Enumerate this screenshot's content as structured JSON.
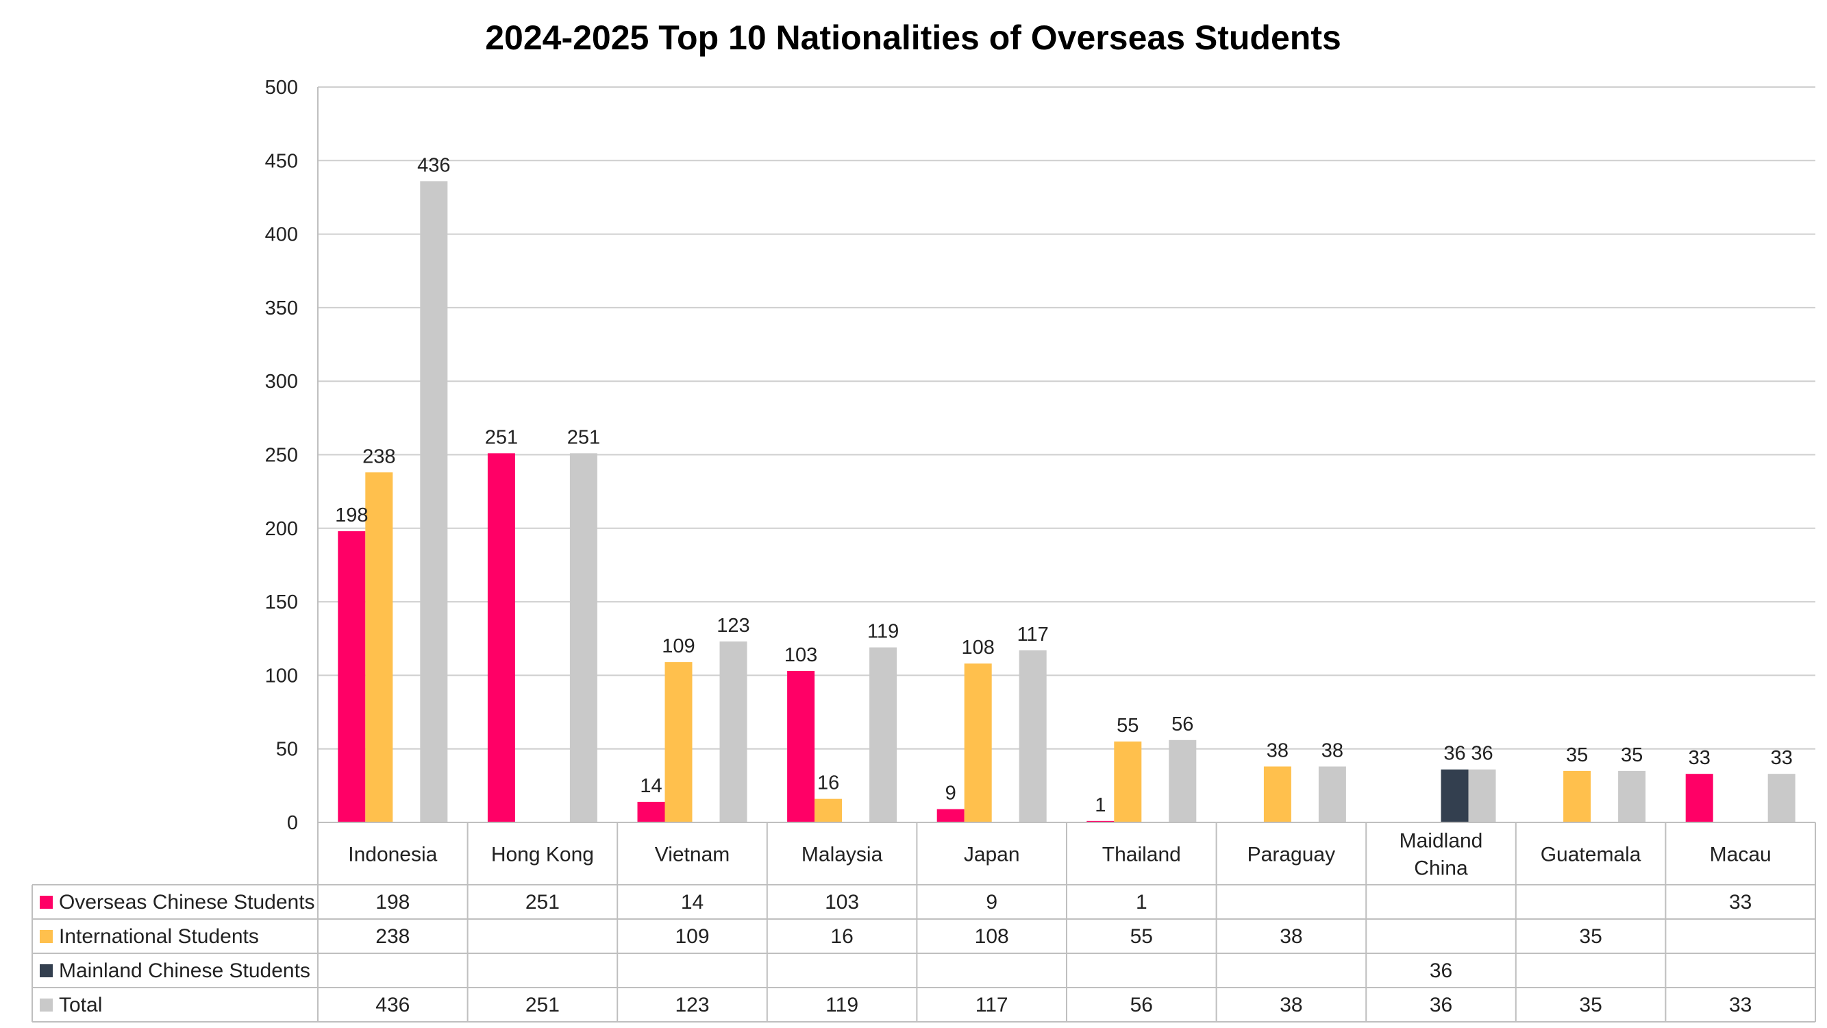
{
  "chart_data": {
    "type": "bar",
    "title": "2024-2025 Top 10 Nationalities of Overseas Students",
    "xlabel": "",
    "ylabel": "",
    "ylim": [
      0,
      500
    ],
    "yticks": [
      0,
      50,
      100,
      150,
      200,
      250,
      300,
      350,
      400,
      450,
      500
    ],
    "grid": true,
    "legend": "data-table-left",
    "categories": [
      [
        "Indonesia"
      ],
      [
        "Hong Kong"
      ],
      [
        "Vietnam"
      ],
      [
        "Malaysia"
      ],
      [
        "Japan"
      ],
      [
        "Thailand"
      ],
      [
        "Paraguay"
      ],
      [
        "Maidland",
        "China"
      ],
      [
        "Guatemala"
      ],
      [
        "Macau"
      ]
    ],
    "series": [
      {
        "name": "Overseas Chinese Students",
        "color": "#FF0066",
        "values": [
          198,
          251,
          14,
          103,
          9,
          1,
          null,
          null,
          null,
          33
        ]
      },
      {
        "name": "International Students",
        "color": "#FFC04D",
        "values": [
          238,
          null,
          109,
          16,
          108,
          55,
          38,
          null,
          35,
          null
        ]
      },
      {
        "name": "Mainland Chinese Students",
        "color": "#333F4F",
        "values": [
          null,
          null,
          null,
          null,
          null,
          null,
          null,
          36,
          null,
          null
        ]
      },
      {
        "name": "Total",
        "color": "#C9C9C9",
        "values": [
          436,
          251,
          123,
          119,
          117,
          56,
          38,
          36,
          35,
          33
        ]
      }
    ]
  }
}
